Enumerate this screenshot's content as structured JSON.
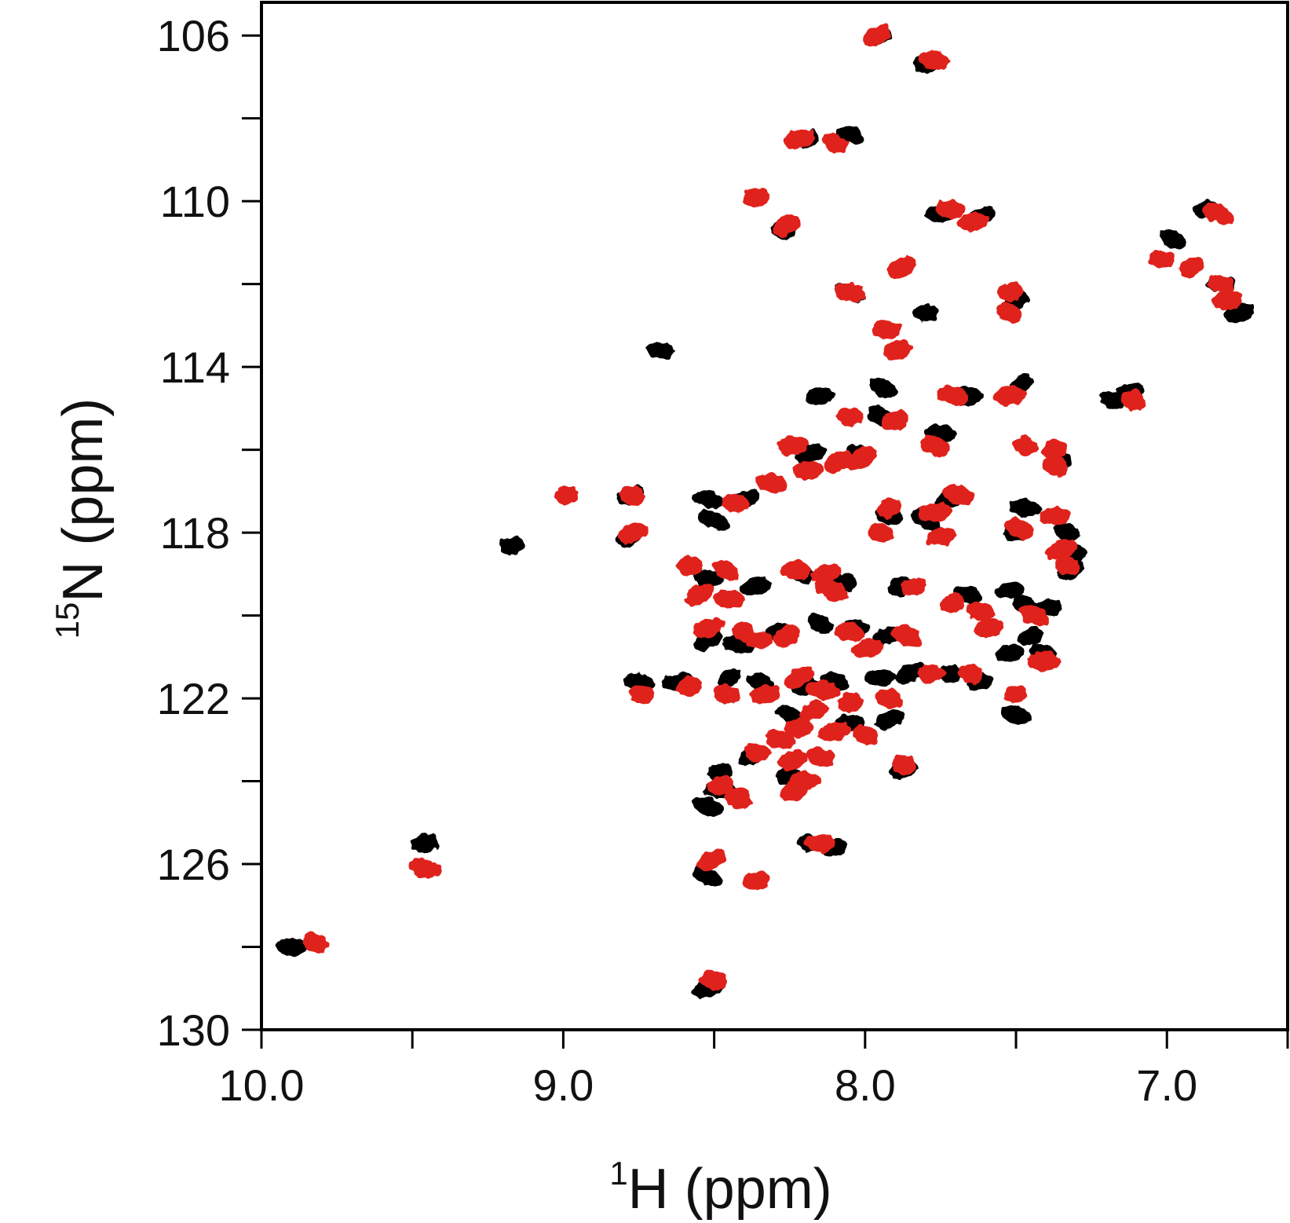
{
  "chart_data": {
    "type": "scatter",
    "subtype": "2D HSQC NMR overlay spectrum",
    "title": "",
    "xlabel": {
      "superscript": "1",
      "text": "H (ppm)"
    },
    "ylabel": {
      "superscript": "15",
      "text": "N  (ppm)"
    },
    "xlim": [
      10.0,
      6.6
    ],
    "ylim": [
      130,
      105.2
    ],
    "x_reversed": true,
    "y_reversed": true,
    "x_ticks": [
      10.0,
      9.0,
      8.0,
      7.0
    ],
    "x_tick_labels": [
      "10.0",
      "9.0",
      "8.0",
      "7.0"
    ],
    "x_minor_ticks": [
      9.5,
      8.5,
      7.5,
      6.6
    ],
    "y_ticks": [
      106,
      110,
      114,
      118,
      122,
      126,
      130
    ],
    "y_tick_labels": [
      "106",
      "110",
      "114",
      "118",
      "122",
      "126",
      "130"
    ],
    "y_minor_ticks": [
      108,
      112,
      116,
      120,
      124,
      128
    ],
    "grid": false,
    "legend": "none",
    "series": [
      {
        "color": "#000000",
        "points": [
          [
            7.95,
            106.0
          ],
          [
            7.8,
            106.7
          ],
          [
            8.2,
            108.5
          ],
          [
            8.05,
            108.4
          ],
          [
            7.75,
            110.3
          ],
          [
            7.62,
            110.4
          ],
          [
            8.27,
            110.7
          ],
          [
            6.87,
            110.2
          ],
          [
            6.98,
            110.9
          ],
          [
            6.82,
            112.0
          ],
          [
            6.76,
            112.7
          ],
          [
            8.05,
            112.2
          ],
          [
            7.8,
            112.7
          ],
          [
            7.5,
            112.4
          ],
          [
            8.68,
            113.6
          ],
          [
            8.15,
            114.7
          ],
          [
            7.94,
            114.5
          ],
          [
            7.66,
            114.7
          ],
          [
            7.48,
            114.4
          ],
          [
            7.18,
            114.8
          ],
          [
            7.12,
            114.6
          ],
          [
            7.95,
            115.2
          ],
          [
            7.75,
            115.6
          ],
          [
            8.18,
            116.1
          ],
          [
            8.02,
            116.1
          ],
          [
            7.36,
            116.3
          ],
          [
            8.78,
            117.1
          ],
          [
            8.52,
            117.2
          ],
          [
            8.4,
            117.2
          ],
          [
            8.5,
            117.7
          ],
          [
            9.17,
            118.3
          ],
          [
            8.78,
            118.1
          ],
          [
            7.92,
            117.6
          ],
          [
            7.72,
            117.2
          ],
          [
            7.8,
            117.7
          ],
          [
            7.47,
            117.4
          ],
          [
            7.5,
            118.0
          ],
          [
            7.33,
            118.0
          ],
          [
            7.31,
            118.5
          ],
          [
            7.32,
            118.9
          ],
          [
            8.52,
            119.1
          ],
          [
            8.36,
            119.3
          ],
          [
            8.21,
            119.0
          ],
          [
            8.07,
            119.2
          ],
          [
            7.88,
            119.3
          ],
          [
            7.66,
            119.5
          ],
          [
            7.52,
            119.4
          ],
          [
            7.46,
            119.8
          ],
          [
            7.39,
            119.8
          ],
          [
            7.45,
            120.5
          ],
          [
            7.41,
            120.9
          ],
          [
            7.52,
            120.9
          ],
          [
            8.52,
            120.6
          ],
          [
            8.42,
            120.7
          ],
          [
            8.29,
            120.4
          ],
          [
            8.15,
            120.2
          ],
          [
            8.03,
            120.3
          ],
          [
            7.93,
            120.5
          ],
          [
            8.75,
            121.6
          ],
          [
            8.62,
            121.6
          ],
          [
            8.45,
            121.5
          ],
          [
            8.35,
            121.6
          ],
          [
            8.2,
            121.7
          ],
          [
            8.1,
            121.6
          ],
          [
            7.95,
            121.5
          ],
          [
            7.85,
            121.4
          ],
          [
            7.72,
            121.4
          ],
          [
            7.62,
            121.6
          ],
          [
            8.25,
            122.4
          ],
          [
            8.05,
            122.6
          ],
          [
            7.92,
            122.5
          ],
          [
            7.5,
            122.4
          ],
          [
            8.48,
            123.8
          ],
          [
            8.38,
            123.4
          ],
          [
            8.25,
            123.9
          ],
          [
            7.87,
            123.7
          ],
          [
            8.52,
            124.6
          ],
          [
            8.48,
            124.2
          ],
          [
            8.1,
            125.6
          ],
          [
            8.18,
            125.5
          ],
          [
            9.46,
            125.5
          ],
          [
            8.52,
            126.3
          ],
          [
            9.9,
            128.0
          ],
          [
            8.52,
            129.0
          ]
        ]
      },
      {
        "color": "#e0211b",
        "points": [
          [
            7.96,
            106.0
          ],
          [
            7.77,
            106.6
          ],
          [
            8.22,
            108.5
          ],
          [
            8.1,
            108.6
          ],
          [
            8.36,
            109.9
          ],
          [
            8.26,
            110.6
          ],
          [
            7.72,
            110.2
          ],
          [
            7.64,
            110.5
          ],
          [
            6.83,
            110.3
          ],
          [
            7.02,
            111.4
          ],
          [
            6.92,
            111.6
          ],
          [
            6.82,
            112.0
          ],
          [
            6.8,
            112.4
          ],
          [
            7.88,
            111.6
          ],
          [
            8.05,
            112.2
          ],
          [
            7.52,
            112.2
          ],
          [
            7.52,
            112.7
          ],
          [
            7.93,
            113.1
          ],
          [
            7.89,
            113.6
          ],
          [
            7.71,
            114.7
          ],
          [
            7.52,
            114.7
          ],
          [
            7.11,
            114.8
          ],
          [
            8.05,
            115.2
          ],
          [
            7.9,
            115.3
          ],
          [
            7.77,
            115.9
          ],
          [
            8.24,
            115.9
          ],
          [
            8.01,
            116.2
          ],
          [
            7.47,
            115.9
          ],
          [
            7.37,
            116.0
          ],
          [
            7.37,
            116.4
          ],
          [
            8.19,
            116.5
          ],
          [
            8.09,
            116.3
          ],
          [
            8.31,
            116.8
          ],
          [
            8.99,
            117.1
          ],
          [
            8.77,
            117.1
          ],
          [
            8.43,
            117.3
          ],
          [
            8.77,
            118.0
          ],
          [
            7.69,
            117.1
          ],
          [
            7.77,
            117.5
          ],
          [
            7.92,
            117.4
          ],
          [
            7.95,
            118.0
          ],
          [
            7.75,
            118.1
          ],
          [
            7.49,
            117.9
          ],
          [
            7.37,
            117.6
          ],
          [
            7.35,
            118.4
          ],
          [
            7.33,
            118.8
          ],
          [
            8.58,
            118.8
          ],
          [
            8.46,
            118.9
          ],
          [
            8.23,
            118.9
          ],
          [
            8.13,
            119.0
          ],
          [
            8.11,
            119.4
          ],
          [
            7.84,
            119.3
          ],
          [
            7.71,
            119.7
          ],
          [
            7.62,
            119.9
          ],
          [
            7.59,
            120.3
          ],
          [
            7.44,
            120.0
          ],
          [
            7.41,
            121.1
          ],
          [
            7.5,
            121.9
          ],
          [
            7.65,
            121.4
          ],
          [
            7.78,
            121.4
          ],
          [
            8.55,
            119.5
          ],
          [
            8.45,
            119.6
          ],
          [
            8.52,
            120.3
          ],
          [
            8.4,
            120.4
          ],
          [
            8.35,
            120.6
          ],
          [
            8.26,
            120.5
          ],
          [
            8.05,
            120.4
          ],
          [
            7.99,
            120.8
          ],
          [
            7.86,
            120.5
          ],
          [
            8.74,
            121.9
          ],
          [
            8.58,
            121.7
          ],
          [
            8.46,
            121.9
          ],
          [
            8.33,
            121.9
          ],
          [
            8.22,
            121.5
          ],
          [
            8.14,
            121.8
          ],
          [
            8.05,
            122.1
          ],
          [
            7.92,
            122.0
          ],
          [
            8.22,
            122.7
          ],
          [
            8.17,
            122.3
          ],
          [
            8.28,
            123.0
          ],
          [
            8.1,
            122.8
          ],
          [
            8.0,
            122.9
          ],
          [
            8.36,
            123.3
          ],
          [
            8.24,
            123.5
          ],
          [
            8.15,
            123.4
          ],
          [
            8.2,
            124.0
          ],
          [
            8.23,
            124.2
          ],
          [
            7.87,
            123.6
          ],
          [
            8.48,
            124.1
          ],
          [
            8.42,
            124.4
          ],
          [
            8.15,
            125.5
          ],
          [
            8.51,
            125.9
          ],
          [
            9.46,
            126.1
          ],
          [
            8.36,
            126.4
          ],
          [
            9.82,
            127.9
          ],
          [
            8.5,
            128.8
          ]
        ]
      }
    ]
  }
}
